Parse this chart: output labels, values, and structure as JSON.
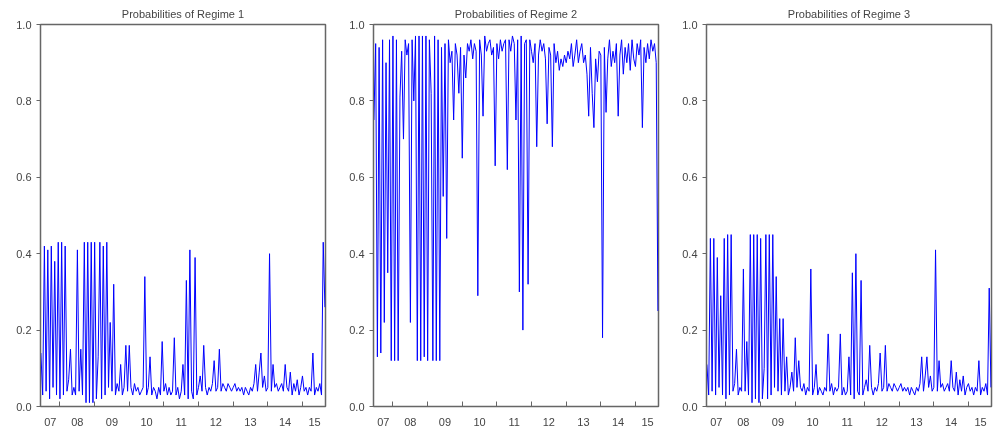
{
  "chart_data": [
    {
      "type": "line",
      "title": "Probabilities of Regime 1",
      "xlim": [
        "2007-06-10",
        "2015-09-01"
      ],
      "ylim": [
        0,
        1
      ],
      "grid": false,
      "xticks": [
        {
          "value": "2007-09-22",
          "label": "07"
        },
        {
          "value": "2008-01-01",
          "label": null
        },
        {
          "value": "2008-07-02",
          "label": "08"
        },
        {
          "value": "2009-01-01",
          "label": null
        },
        {
          "value": "2009-07-02",
          "label": "09"
        },
        {
          "value": "2010-01-01",
          "label": null
        },
        {
          "value": "2010-07-02",
          "label": "10"
        },
        {
          "value": "2011-01-01",
          "label": null
        },
        {
          "value": "2011-07-02",
          "label": "11"
        },
        {
          "value": "2012-01-01",
          "label": null
        },
        {
          "value": "2012-07-02",
          "label": "12"
        },
        {
          "value": "2013-01-01",
          "label": null
        },
        {
          "value": "2013-07-02",
          "label": "13"
        },
        {
          "value": "2014-01-01",
          "label": null
        },
        {
          "value": "2014-07-02",
          "label": "14"
        },
        {
          "value": "2015-01-01",
          "label": null
        },
        {
          "value": "2015-05-08",
          "label": "15"
        }
      ],
      "yticks": [
        {
          "value": 0,
          "label": "0.0"
        },
        {
          "value": 0.2,
          "label": "0.2"
        },
        {
          "value": 0.4,
          "label": "0.4"
        },
        {
          "value": 0.6,
          "label": "0.6"
        },
        {
          "value": 0.8,
          "label": "0.8"
        },
        {
          "value": 1,
          "label": "1.0"
        }
      ],
      "x": [
        "2007-06-14",
        "2007-07-03",
        "2007-07-21",
        "2007-08-08",
        "2007-08-26",
        "2007-09-14",
        "2007-10-02",
        "2007-10-20",
        "2007-11-07",
        "2007-11-26",
        "2007-12-14",
        "2008-01-01",
        "2008-01-19",
        "2008-02-07",
        "2008-02-25",
        "2008-03-15",
        "2008-04-02",
        "2008-04-21",
        "2008-05-09",
        "2008-05-27",
        "2008-06-14",
        "2008-07-03",
        "2008-07-21",
        "2008-08-08",
        "2008-08-26",
        "2008-09-14",
        "2008-10-02",
        "2008-10-20",
        "2008-11-07",
        "2008-11-26",
        "2008-12-14",
        "2009-01-01",
        "2009-01-19",
        "2009-02-07",
        "2009-02-25",
        "2009-03-15",
        "2009-04-02",
        "2009-04-21",
        "2009-05-09",
        "2009-05-27",
        "2009-06-14",
        "2009-07-03",
        "2009-07-21",
        "2009-08-08",
        "2009-08-26",
        "2009-09-14",
        "2009-10-02",
        "2009-10-20",
        "2009-11-07",
        "2009-11-26",
        "2009-12-14",
        "2010-01-01",
        "2010-01-19",
        "2010-02-07",
        "2010-02-25",
        "2010-03-15",
        "2010-04-02",
        "2010-04-21",
        "2010-05-09",
        "2010-05-27",
        "2010-06-14",
        "2010-07-03",
        "2010-07-21",
        "2010-08-08",
        "2010-08-26",
        "2010-09-14",
        "2010-10-02",
        "2010-10-20",
        "2010-11-07",
        "2010-11-26",
        "2010-12-14",
        "2011-01-01",
        "2011-01-19",
        "2011-02-07",
        "2011-02-25",
        "2011-03-15",
        "2011-04-02",
        "2011-04-21",
        "2011-05-09",
        "2011-05-27",
        "2011-06-14",
        "2011-07-03",
        "2011-07-21",
        "2011-08-08",
        "2011-08-26",
        "2011-09-14",
        "2011-10-02",
        "2011-10-20",
        "2011-11-07",
        "2011-11-26",
        "2011-12-14",
        "2012-01-01",
        "2012-01-19",
        "2012-02-07",
        "2012-02-25",
        "2012-03-15",
        "2012-04-02",
        "2012-04-21",
        "2012-05-09",
        "2012-05-27",
        "2012-06-14",
        "2012-07-03",
        "2012-07-21",
        "2012-08-08",
        "2012-08-26",
        "2012-09-14",
        "2012-10-02",
        "2012-10-20",
        "2012-11-07",
        "2012-11-26",
        "2012-12-14",
        "2013-01-01",
        "2013-01-19",
        "2013-02-07",
        "2013-02-25",
        "2013-03-15",
        "2013-04-02",
        "2013-04-21",
        "2013-05-09",
        "2013-05-27",
        "2013-06-14",
        "2013-07-03",
        "2013-07-21",
        "2013-08-08",
        "2013-08-26",
        "2013-09-14",
        "2013-10-02",
        "2013-10-20",
        "2013-11-07",
        "2013-11-26",
        "2013-12-14",
        "2014-01-01",
        "2014-01-19",
        "2014-02-07",
        "2014-02-25",
        "2014-03-15",
        "2014-04-02",
        "2014-04-21",
        "2014-05-09",
        "2014-05-27",
        "2014-06-14",
        "2014-07-03",
        "2014-07-21",
        "2014-08-08",
        "2014-08-26",
        "2014-09-14",
        "2014-10-02",
        "2014-10-20",
        "2014-11-07",
        "2014-11-26",
        "2014-12-14",
        "2015-01-01",
        "2015-01-19",
        "2015-02-07",
        "2015-02-25",
        "2015-03-15",
        "2015-04-02",
        "2015-04-21",
        "2015-05-09",
        "2015-05-27",
        "2015-06-14",
        "2015-07-03",
        "2015-07-21",
        "2015-08-08",
        "2015-08-26"
      ],
      "series": [
        {
          "color": "#0000ff",
          "values": [
            0.14,
            0.03,
            0.42,
            0.04,
            0.41,
            0.02,
            0.42,
            0.05,
            0.38,
            0.03,
            0.43,
            0.02,
            0.43,
            0.03,
            0.42,
            0.04,
            0.07,
            0.15,
            0.03,
            0.05,
            0.03,
            0.41,
            0.04,
            0.15,
            0.03,
            0.43,
            0.01,
            0.43,
            0.01,
            0.43,
            0.01,
            0.43,
            0.02,
            0.13,
            0.43,
            0.02,
            0.42,
            0.03,
            0.43,
            0.05,
            0.22,
            0.04,
            0.32,
            0.03,
            0.06,
            0.04,
            0.11,
            0.03,
            0.05,
            0.16,
            0.04,
            0.16,
            0.05,
            0.03,
            0.06,
            0.04,
            0.05,
            0.03,
            0.04,
            0.05,
            0.34,
            0.03,
            0.05,
            0.13,
            0.03,
            0.05,
            0.04,
            0.02,
            0.05,
            0.03,
            0.17,
            0.04,
            0.06,
            0.03,
            0.05,
            0.03,
            0.04,
            0.18,
            0.03,
            0.05,
            0.02,
            0.04,
            0.11,
            0.03,
            0.33,
            0.02,
            0.41,
            0.04,
            0.02,
            0.39,
            0.03,
            0.05,
            0.08,
            0.04,
            0.16,
            0.05,
            0.03,
            0.05,
            0.04,
            0.06,
            0.12,
            0.04,
            0.05,
            0.15,
            0.04,
            0.06,
            0.05,
            0.04,
            0.06,
            0.05,
            0.04,
            0.05,
            0.06,
            0.04,
            0.05,
            0.04,
            0.05,
            0.03,
            0.05,
            0.04,
            0.03,
            0.05,
            0.04,
            0.06,
            0.11,
            0.04,
            0.09,
            0.14,
            0.05,
            0.08,
            0.04,
            0.05,
            0.4,
            0.04,
            0.11,
            0.05,
            0.06,
            0.04,
            0.05,
            0.06,
            0.04,
            0.11,
            0.05,
            0.04,
            0.09,
            0.03,
            0.06,
            0.04,
            0.07,
            0.03,
            0.05,
            0.08,
            0.04,
            0.05,
            0.03,
            0.05,
            0.04,
            0.14,
            0.03,
            0.05,
            0.04,
            0.06,
            0.03,
            0.43,
            0.26
          ]
        }
      ]
    },
    {
      "type": "line",
      "title": "Probabilities of Regime 2",
      "xlim": [
        "2007-06-10",
        "2015-09-01"
      ],
      "ylim": [
        0,
        1
      ],
      "grid": false,
      "xticks": [
        {
          "value": "2007-09-22",
          "label": "07"
        },
        {
          "value": "2008-01-01",
          "label": null
        },
        {
          "value": "2008-07-02",
          "label": "08"
        },
        {
          "value": "2009-01-01",
          "label": null
        },
        {
          "value": "2009-07-02",
          "label": "09"
        },
        {
          "value": "2010-01-01",
          "label": null
        },
        {
          "value": "2010-07-02",
          "label": "10"
        },
        {
          "value": "2011-01-01",
          "label": null
        },
        {
          "value": "2011-07-02",
          "label": "11"
        },
        {
          "value": "2012-01-01",
          "label": null
        },
        {
          "value": "2012-07-02",
          "label": "12"
        },
        {
          "value": "2013-01-01",
          "label": null
        },
        {
          "value": "2013-07-02",
          "label": "13"
        },
        {
          "value": "2014-01-01",
          "label": null
        },
        {
          "value": "2014-07-02",
          "label": "14"
        },
        {
          "value": "2015-01-01",
          "label": null
        },
        {
          "value": "2015-05-08",
          "label": "15"
        }
      ],
      "yticks": [
        {
          "value": 0,
          "label": "0.0"
        },
        {
          "value": 0.2,
          "label": "0.2"
        },
        {
          "value": 0.4,
          "label": "0.4"
        },
        {
          "value": 0.6,
          "label": "0.6"
        },
        {
          "value": 0.8,
          "label": "0.8"
        },
        {
          "value": 1,
          "label": "1.0"
        }
      ],
      "x": [
        "2007-06-14",
        "2007-07-03",
        "2007-07-21",
        "2007-08-08",
        "2007-08-26",
        "2007-09-14",
        "2007-10-02",
        "2007-10-20",
        "2007-11-07",
        "2007-11-26",
        "2007-12-14",
        "2008-01-01",
        "2008-01-19",
        "2008-02-07",
        "2008-02-25",
        "2008-03-15",
        "2008-04-02",
        "2008-04-21",
        "2008-05-09",
        "2008-05-27",
        "2008-06-14",
        "2008-07-03",
        "2008-07-21",
        "2008-08-08",
        "2008-08-26",
        "2008-09-14",
        "2008-10-02",
        "2008-10-20",
        "2008-11-07",
        "2008-11-26",
        "2008-12-14",
        "2009-01-01",
        "2009-01-19",
        "2009-02-07",
        "2009-02-25",
        "2009-03-15",
        "2009-04-02",
        "2009-04-21",
        "2009-05-09",
        "2009-05-27",
        "2009-06-14",
        "2009-07-03",
        "2009-07-21",
        "2009-08-08",
        "2009-08-26",
        "2009-09-14",
        "2009-10-02",
        "2009-10-20",
        "2009-11-07",
        "2009-11-26",
        "2009-12-14",
        "2010-01-01",
        "2010-01-19",
        "2010-02-07",
        "2010-02-25",
        "2010-03-15",
        "2010-04-02",
        "2010-04-21",
        "2010-05-09",
        "2010-05-27",
        "2010-06-14",
        "2010-07-03",
        "2010-07-21",
        "2010-08-08",
        "2010-08-26",
        "2010-09-14",
        "2010-10-02",
        "2010-10-20",
        "2010-11-07",
        "2010-11-26",
        "2010-12-14",
        "2011-01-01",
        "2011-01-19",
        "2011-02-07",
        "2011-02-25",
        "2011-03-15",
        "2011-04-02",
        "2011-04-21",
        "2011-05-09",
        "2011-05-27",
        "2011-06-14",
        "2011-07-03",
        "2011-07-21",
        "2011-08-08",
        "2011-08-26",
        "2011-09-14",
        "2011-10-02",
        "2011-10-20",
        "2011-11-07",
        "2011-11-26",
        "2011-12-14",
        "2012-01-01",
        "2012-01-19",
        "2012-02-07",
        "2012-02-25",
        "2012-03-15",
        "2012-04-02",
        "2012-04-21",
        "2012-05-09",
        "2012-05-27",
        "2012-06-14",
        "2012-07-03",
        "2012-07-21",
        "2012-08-08",
        "2012-08-26",
        "2012-09-14",
        "2012-10-02",
        "2012-10-20",
        "2012-11-07",
        "2012-11-26",
        "2012-12-14",
        "2013-01-01",
        "2013-01-19",
        "2013-02-07",
        "2013-02-25",
        "2013-03-15",
        "2013-04-02",
        "2013-04-21",
        "2013-05-09",
        "2013-05-27",
        "2013-06-14",
        "2013-07-03",
        "2013-07-21",
        "2013-08-08",
        "2013-08-26",
        "2013-09-14",
        "2013-10-02",
        "2013-10-20",
        "2013-11-07",
        "2013-11-26",
        "2013-12-14",
        "2014-01-01",
        "2014-01-19",
        "2014-02-07",
        "2014-02-25",
        "2014-03-15",
        "2014-04-02",
        "2014-04-21",
        "2014-05-09",
        "2014-05-27",
        "2014-06-14",
        "2014-07-03",
        "2014-07-21",
        "2014-08-08",
        "2014-08-26",
        "2014-09-14",
        "2014-10-02",
        "2014-10-20",
        "2014-11-07",
        "2014-11-26",
        "2014-12-14",
        "2015-01-01",
        "2015-01-19",
        "2015-02-07",
        "2015-02-25",
        "2015-03-15",
        "2015-04-02",
        "2015-04-21",
        "2015-05-09",
        "2015-05-27",
        "2015-06-14",
        "2015-07-03",
        "2015-07-21",
        "2015-08-08",
        "2015-08-26"
      ],
      "series": [
        {
          "color": "#0000ff",
          "values": [
            0.75,
            0.95,
            0.13,
            0.94,
            0.14,
            0.96,
            0.22,
            0.9,
            0.35,
            0.96,
            0.12,
            0.97,
            0.12,
            0.96,
            0.12,
            0.81,
            0.93,
            0.7,
            0.96,
            0.92,
            0.95,
            0.22,
            0.96,
            0.8,
            0.97,
            0.12,
            0.97,
            0.12,
            0.97,
            0.13,
            0.97,
            0.12,
            0.96,
            0.82,
            0.12,
            0.97,
            0.12,
            0.96,
            0.12,
            0.94,
            0.55,
            0.95,
            0.44,
            0.96,
            0.9,
            0.93,
            0.75,
            0.95,
            0.92,
            0.82,
            0.94,
            0.65,
            0.92,
            0.86,
            0.95,
            0.93,
            0.96,
            0.91,
            0.95,
            0.93,
            0.29,
            0.96,
            0.92,
            0.76,
            0.97,
            0.93,
            0.95,
            0.96,
            0.92,
            0.94,
            0.63,
            0.95,
            0.91,
            0.96,
            0.93,
            0.95,
            0.96,
            0.62,
            0.96,
            0.93,
            0.97,
            0.95,
            0.75,
            0.96,
            0.3,
            0.97,
            0.2,
            0.95,
            0.96,
            0.32,
            0.96,
            0.93,
            0.9,
            0.95,
            0.68,
            0.92,
            0.96,
            0.93,
            0.95,
            0.91,
            0.74,
            0.94,
            0.92,
            0.68,
            0.95,
            0.9,
            0.93,
            0.88,
            0.91,
            0.89,
            0.92,
            0.9,
            0.93,
            0.91,
            0.95,
            0.89,
            0.92,
            0.96,
            0.9,
            0.93,
            0.95,
            0.9,
            0.92,
            0.87,
            0.76,
            0.94,
            0.82,
            0.73,
            0.91,
            0.85,
            0.93,
            0.92,
            0.18,
            0.94,
            0.77,
            0.91,
            0.96,
            0.89,
            0.93,
            0.9,
            0.95,
            0.76,
            0.92,
            0.96,
            0.87,
            0.94,
            0.9,
            0.95,
            0.88,
            0.96,
            0.91,
            0.89,
            0.95,
            0.92,
            0.96,
            0.73,
            0.94,
            0.9,
            0.95,
            0.91,
            0.96,
            0.93,
            0.95,
            0.9,
            0.25
          ]
        }
      ]
    },
    {
      "type": "line",
      "title": "Probabilities of Regime 3",
      "xlim": [
        "2007-06-10",
        "2015-09-01"
      ],
      "ylim": [
        0,
        1
      ],
      "grid": false,
      "xticks": [
        {
          "value": "2007-09-22",
          "label": "07"
        },
        {
          "value": "2008-01-01",
          "label": null
        },
        {
          "value": "2008-07-02",
          "label": "08"
        },
        {
          "value": "2009-01-01",
          "label": null
        },
        {
          "value": "2009-07-02",
          "label": "09"
        },
        {
          "value": "2010-01-01",
          "label": null
        },
        {
          "value": "2010-07-02",
          "label": "10"
        },
        {
          "value": "2011-01-01",
          "label": null
        },
        {
          "value": "2011-07-02",
          "label": "11"
        },
        {
          "value": "2012-01-01",
          "label": null
        },
        {
          "value": "2012-07-02",
          "label": "12"
        },
        {
          "value": "2013-01-01",
          "label": null
        },
        {
          "value": "2013-07-02",
          "label": "13"
        },
        {
          "value": "2014-01-01",
          "label": null
        },
        {
          "value": "2014-07-02",
          "label": "14"
        },
        {
          "value": "2015-01-01",
          "label": null
        },
        {
          "value": "2015-05-08",
          "label": "15"
        }
      ],
      "yticks": [
        {
          "value": 0,
          "label": "0.0"
        },
        {
          "value": 0.2,
          "label": "0.2"
        },
        {
          "value": 0.4,
          "label": "0.4"
        },
        {
          "value": 0.6,
          "label": "0.6"
        },
        {
          "value": 0.8,
          "label": "0.8"
        },
        {
          "value": 1,
          "label": "1.0"
        }
      ],
      "x": [
        "2007-06-14",
        "2007-07-03",
        "2007-07-21",
        "2007-08-08",
        "2007-08-26",
        "2007-09-14",
        "2007-10-02",
        "2007-10-20",
        "2007-11-07",
        "2007-11-26",
        "2007-12-14",
        "2008-01-01",
        "2008-01-19",
        "2008-02-07",
        "2008-02-25",
        "2008-03-15",
        "2008-04-02",
        "2008-04-21",
        "2008-05-09",
        "2008-05-27",
        "2008-06-14",
        "2008-07-03",
        "2008-07-21",
        "2008-08-08",
        "2008-08-26",
        "2008-09-14",
        "2008-10-02",
        "2008-10-20",
        "2008-11-07",
        "2008-11-26",
        "2008-12-14",
        "2009-01-01",
        "2009-01-19",
        "2009-02-07",
        "2009-02-25",
        "2009-03-15",
        "2009-04-02",
        "2009-04-21",
        "2009-05-09",
        "2009-05-27",
        "2009-06-14",
        "2009-07-03",
        "2009-07-21",
        "2009-08-08",
        "2009-08-26",
        "2009-09-14",
        "2009-10-02",
        "2009-10-20",
        "2009-11-07",
        "2009-11-26",
        "2009-12-14",
        "2010-01-01",
        "2010-01-19",
        "2010-02-07",
        "2010-02-25",
        "2010-03-15",
        "2010-04-02",
        "2010-04-21",
        "2010-05-09",
        "2010-05-27",
        "2010-06-14",
        "2010-07-03",
        "2010-07-21",
        "2010-08-08",
        "2010-08-26",
        "2010-09-14",
        "2010-10-02",
        "2010-10-20",
        "2010-11-07",
        "2010-11-26",
        "2010-12-14",
        "2011-01-01",
        "2011-01-19",
        "2011-02-07",
        "2011-02-25",
        "2011-03-15",
        "2011-04-02",
        "2011-04-21",
        "2011-05-09",
        "2011-05-27",
        "2011-06-14",
        "2011-07-03",
        "2011-07-21",
        "2011-08-08",
        "2011-08-26",
        "2011-09-14",
        "2011-10-02",
        "2011-10-20",
        "2011-11-07",
        "2011-11-26",
        "2011-12-14",
        "2012-01-01",
        "2012-01-19",
        "2012-02-07",
        "2012-02-25",
        "2012-03-15",
        "2012-04-02",
        "2012-04-21",
        "2012-05-09",
        "2012-05-27",
        "2012-06-14",
        "2012-07-03",
        "2012-07-21",
        "2012-08-08",
        "2012-08-26",
        "2012-09-14",
        "2012-10-02",
        "2012-10-20",
        "2012-11-07",
        "2012-11-26",
        "2012-12-14",
        "2013-01-01",
        "2013-01-19",
        "2013-02-07",
        "2013-02-25",
        "2013-03-15",
        "2013-04-02",
        "2013-04-21",
        "2013-05-09",
        "2013-05-27",
        "2013-06-14",
        "2013-07-03",
        "2013-07-21",
        "2013-08-08",
        "2013-08-26",
        "2013-09-14",
        "2013-10-02",
        "2013-10-20",
        "2013-11-07",
        "2013-11-26",
        "2013-12-14",
        "2014-01-01",
        "2014-01-19",
        "2014-02-07",
        "2014-02-25",
        "2014-03-15",
        "2014-04-02",
        "2014-04-21",
        "2014-05-09",
        "2014-05-27",
        "2014-06-14",
        "2014-07-03",
        "2014-07-21",
        "2014-08-08",
        "2014-08-26",
        "2014-09-14",
        "2014-10-02",
        "2014-10-20",
        "2014-11-07",
        "2014-11-26",
        "2014-12-14",
        "2015-01-01",
        "2015-01-19",
        "2015-02-07",
        "2015-02-25",
        "2015-03-15",
        "2015-04-02",
        "2015-04-21",
        "2015-05-09",
        "2015-05-27",
        "2015-06-14",
        "2015-07-03",
        "2015-07-21",
        "2015-08-08",
        "2015-08-26"
      ],
      "series": [
        {
          "color": "#0000ff",
          "values": [
            0.11,
            0.03,
            0.44,
            0.04,
            0.44,
            0.03,
            0.39,
            0.05,
            0.29,
            0.03,
            0.44,
            0.02,
            0.45,
            0.03,
            0.45,
            0.04,
            0.06,
            0.15,
            0.03,
            0.05,
            0.04,
            0.36,
            0.04,
            0.17,
            0.03,
            0.45,
            0.01,
            0.45,
            0.02,
            0.45,
            0.01,
            0.44,
            0.02,
            0.1,
            0.45,
            0.02,
            0.45,
            0.03,
            0.45,
            0.05,
            0.34,
            0.04,
            0.23,
            0.03,
            0.23,
            0.04,
            0.13,
            0.03,
            0.05,
            0.09,
            0.04,
            0.18,
            0.05,
            0.12,
            0.05,
            0.04,
            0.06,
            0.03,
            0.05,
            0.04,
            0.36,
            0.03,
            0.05,
            0.11,
            0.03,
            0.05,
            0.04,
            0.03,
            0.05,
            0.04,
            0.19,
            0.04,
            0.06,
            0.03,
            0.05,
            0.04,
            0.05,
            0.19,
            0.03,
            0.05,
            0.03,
            0.04,
            0.13,
            0.03,
            0.35,
            0.02,
            0.4,
            0.04,
            0.03,
            0.33,
            0.03,
            0.05,
            0.07,
            0.04,
            0.16,
            0.05,
            0.03,
            0.05,
            0.04,
            0.06,
            0.14,
            0.04,
            0.05,
            0.16,
            0.04,
            0.06,
            0.05,
            0.04,
            0.06,
            0.05,
            0.04,
            0.05,
            0.06,
            0.04,
            0.05,
            0.04,
            0.05,
            0.03,
            0.05,
            0.04,
            0.03,
            0.05,
            0.04,
            0.06,
            0.13,
            0.04,
            0.08,
            0.13,
            0.05,
            0.08,
            0.04,
            0.05,
            0.41,
            0.04,
            0.12,
            0.05,
            0.06,
            0.04,
            0.05,
            0.06,
            0.04,
            0.12,
            0.05,
            0.04,
            0.09,
            0.03,
            0.07,
            0.04,
            0.08,
            0.03,
            0.05,
            0.06,
            0.04,
            0.05,
            0.03,
            0.05,
            0.04,
            0.12,
            0.03,
            0.05,
            0.04,
            0.06,
            0.03,
            0.31,
            0.05
          ]
        }
      ]
    }
  ]
}
